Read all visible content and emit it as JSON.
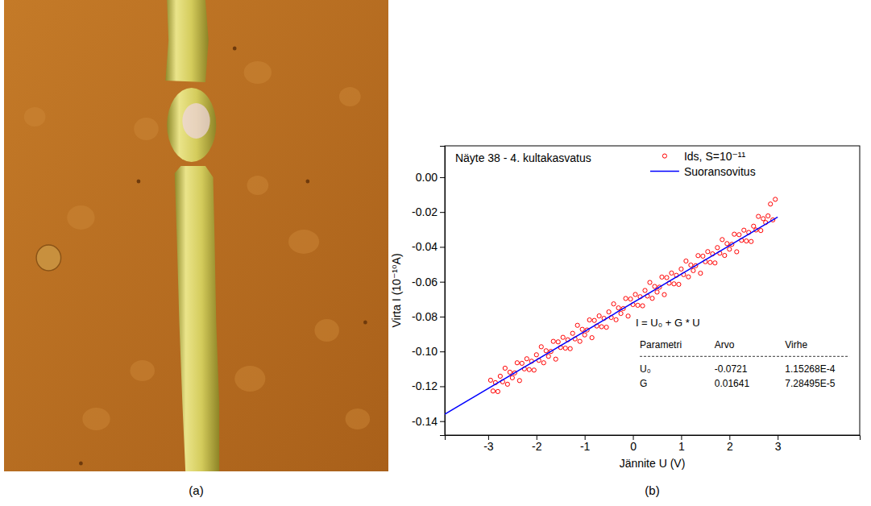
{
  "panel_labels": [
    "(a)",
    "(b)"
  ],
  "chart_data": {
    "type": "scatter",
    "title": "Näyte 38 - 4. kultakasvatus",
    "x_label": "Jännite U (V)",
    "y_label": "Virta I (10⁻¹⁰A)",
    "x": [
      -2.95,
      -2.9,
      -2.85,
      -2.8,
      -2.75,
      -2.7,
      -2.65,
      -2.6,
      -2.55,
      -2.5,
      -2.45,
      -2.4,
      -2.35,
      -2.3,
      -2.25,
      -2.2,
      -2.15,
      -2.1,
      -2.05,
      -2,
      -1.95,
      -1.9,
      -1.85,
      -1.8,
      -1.75,
      -1.7,
      -1.65,
      -1.6,
      -1.55,
      -1.5,
      -1.45,
      -1.4,
      -1.35,
      -1.3,
      -1.25,
      -1.2,
      -1.15,
      -1.1,
      -1.05,
      -1,
      -0.95,
      -0.9,
      -0.85,
      -0.8,
      -0.75,
      -0.7,
      -0.65,
      -0.6,
      -0.55,
      -0.5,
      -0.45,
      -0.4,
      -0.35,
      -0.3,
      -0.25,
      -0.2,
      -0.15,
      -0.1,
      -0.05,
      0,
      0.05,
      0.1,
      0.15,
      0.2,
      0.25,
      0.3,
      0.35,
      0.4,
      0.45,
      0.5,
      0.55,
      0.6,
      0.65,
      0.7,
      0.75,
      0.8,
      0.85,
      0.9,
      0.95,
      1,
      1.05,
      1.1,
      1.15,
      1.2,
      1.25,
      1.3,
      1.35,
      1.4,
      1.45,
      1.5,
      1.55,
      1.6,
      1.65,
      1.7,
      1.75,
      1.8,
      1.85,
      1.9,
      1.95,
      2,
      2.05,
      2.1,
      2.15,
      2.2,
      2.25,
      2.3,
      2.35,
      2.4,
      2.45,
      2.5,
      2.55,
      2.6,
      2.65,
      2.7,
      2.75,
      2.8,
      2.85,
      2.9,
      2.95
    ],
    "series": [
      {
        "name": "Ids, S=10⁻¹¹",
        "type": "scatter",
        "marker": "circle",
        "color": "#ff0000",
        "values": [
          -0.1165,
          -0.1227,
          -0.1179,
          -0.123,
          -0.1142,
          -0.1174,
          -0.1096,
          -0.1188,
          -0.1119,
          -0.1151,
          -0.1123,
          -0.1065,
          -0.1167,
          -0.1068,
          -0.11,
          -0.1042,
          -0.1104,
          -0.1056,
          -0.1107,
          -0.1019,
          -0.1051,
          -0.0973,
          -0.1065,
          -0.0996,
          -0.1028,
          -0.1,
          -0.0942,
          -0.1044,
          -0.0945,
          -0.0977,
          -0.0919,
          -0.0981,
          -0.0933,
          -0.0984,
          -0.0896,
          -0.0928,
          -0.085,
          -0.0942,
          -0.0873,
          -0.0905,
          -0.0877,
          -0.0819,
          -0.0921,
          -0.0822,
          -0.0854,
          -0.0796,
          -0.0858,
          -0.081,
          -0.0861,
          -0.0773,
          -0.0805,
          -0.0727,
          -0.0818,
          -0.075,
          -0.0782,
          -0.0754,
          -0.0696,
          -0.0797,
          -0.0699,
          -0.0731,
          -0.0673,
          -0.0735,
          -0.0686,
          -0.0738,
          -0.065,
          -0.0682,
          -0.0604,
          -0.0695,
          -0.0627,
          -0.0659,
          -0.0631,
          -0.0573,
          -0.0674,
          -0.0576,
          -0.0608,
          -0.055,
          -0.0612,
          -0.0563,
          -0.0615,
          -0.0527,
          -0.0559,
          -0.0481,
          -0.0572,
          -0.0504,
          -0.0536,
          -0.0508,
          -0.045,
          -0.0551,
          -0.0453,
          -0.0485,
          -0.0427,
          -0.0489,
          -0.044,
          -0.0492,
          -0.0404,
          -0.0436,
          -0.0358,
          -0.0449,
          -0.0381,
          -0.0413,
          -0.0385,
          -0.0327,
          -0.0428,
          -0.033,
          -0.0362,
          -0.0304,
          -0.0366,
          -0.0317,
          -0.0369,
          -0.0281,
          -0.0303,
          -0.0225,
          -0.0306,
          -0.0238,
          -0.026,
          -0.0222,
          -0.0154,
          -0.0245,
          -0.0127
        ]
      },
      {
        "name": "Suoransovitus",
        "type": "line",
        "line_style": "solid",
        "color": "#0000ff",
        "x": [
          -3.9,
          3
        ],
        "values": [
          -0.136,
          -0.0229
        ]
      }
    ],
    "xlim": [
      -3.9,
      4.7
    ],
    "xticks": [
      -3,
      -2,
      -1,
      0,
      1,
      2,
      3
    ],
    "ylim": [
      -0.148,
      0.018
    ],
    "yticks": [
      {
        "value": 0,
        "label": "0.00"
      },
      {
        "value": -0.02,
        "label": "-0.02"
      },
      {
        "value": -0.04,
        "label": "-0.04"
      },
      {
        "value": -0.06,
        "label": "-0.06"
      },
      {
        "value": -0.08,
        "label": "-0.08"
      },
      {
        "value": -0.1,
        "label": "-0.10"
      },
      {
        "value": -0.12,
        "label": "-0.12"
      },
      {
        "value": -0.14,
        "label": "-0.14"
      }
    ],
    "legend": "top-right",
    "annotations": {
      "equation": "I = U₀ + G * U",
      "table": {
        "header": [
          "Parametri",
          "Arvo",
          "Virhe"
        ],
        "rows": [
          [
            "U₀",
            "-0.0721",
            "1.15268E-4"
          ],
          [
            "G",
            "0.01641",
            "7.28495E-5"
          ]
        ]
      }
    }
  }
}
